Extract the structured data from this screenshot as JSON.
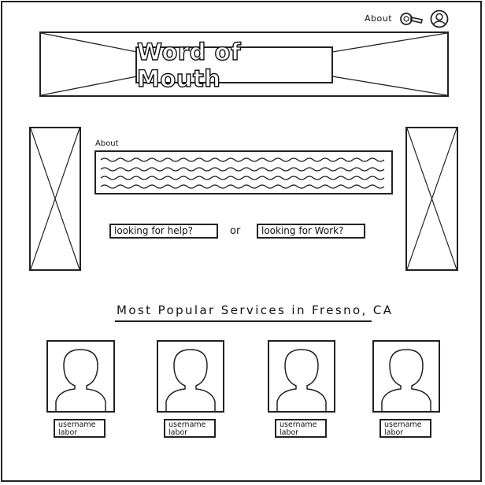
{
  "header": {
    "nav_about": "About",
    "icons": [
      "search-icon",
      "user-profile-icon"
    ]
  },
  "hero": {
    "logo_text": "Word of Mouth"
  },
  "about_section": {
    "label": "About"
  },
  "cta": {
    "help_button": "looking for help?",
    "or_text": "or",
    "work_button": "looking for Work?"
  },
  "popular": {
    "title": "Most Popular Services in Fresno, CA",
    "cards": [
      {
        "username": "username",
        "labor": "labor"
      },
      {
        "username": "username",
        "labor": "labor"
      },
      {
        "username": "username",
        "labor": "labor"
      },
      {
        "username": "username",
        "labor": "labor"
      }
    ]
  }
}
